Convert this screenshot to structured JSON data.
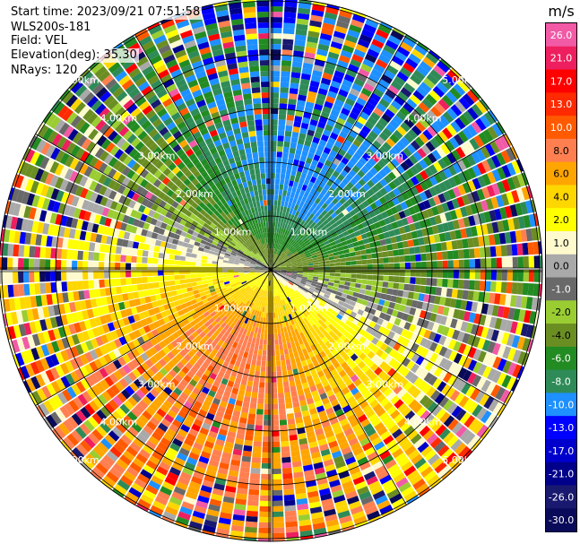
{
  "header": {
    "start_time": "Start time: 2023/09/21 07:51:58",
    "instrument": "WLS200s-181",
    "field": "Field: VEL",
    "elevation": "Elevation(deg): 35.30",
    "nrays": "NRays: 120"
  },
  "chart_data": {
    "type": "heatmap",
    "projection": "polar (PPI scan)",
    "nrays": 120,
    "ring_labels": [
      "1.00km",
      "2.00km",
      "3.00km",
      "4.00km",
      "5.00km"
    ],
    "colorbar": {
      "unit": "m/s",
      "ticks": [
        "26.0",
        "21.0",
        "17.0",
        "13.0",
        "10.0",
        "8.0",
        "6.0",
        "4.0",
        "2.0",
        "1.0",
        "0.0",
        "-1.0",
        "-2.0",
        "-4.0",
        "-6.0",
        "-8.0",
        "-10.0",
        "-13.0",
        "-17.0",
        "-21.0",
        "-26.0",
        "-30.0"
      ],
      "colors": [
        "#f25aa6",
        "#ee1f5f",
        "#ff0000",
        "#ff2a00",
        "#ff5a00",
        "#ff7f50",
        "#ffa500",
        "#ffd700",
        "#ffff00",
        "#fffacd",
        "#a9a9a9",
        "#696969",
        "#9acd32",
        "#6b8e23",
        "#228b22",
        "#2e8b57",
        "#1e90ff",
        "#0000ff",
        "#0000cd",
        "#00008b",
        "#191970",
        "#0a0a5a"
      ]
    }
  }
}
